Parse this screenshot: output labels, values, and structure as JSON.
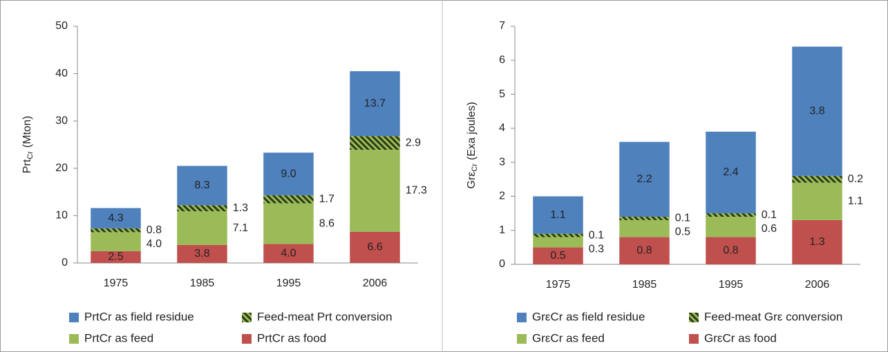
{
  "chart_data": [
    {
      "type": "stacked_bar",
      "y_label": {
        "main": "Prt",
        "sub": "Cr",
        "rest": "(Mton)"
      },
      "categories": [
        "1975",
        "1985",
        "1995",
        "2006"
      ],
      "ylim": [
        0,
        50
      ],
      "yticks": [
        0,
        10,
        20,
        30,
        40,
        50
      ],
      "series": [
        {
          "name": "PrtCr as food",
          "color": "#c0504d",
          "values": [
            2.5,
            3.8,
            4.0,
            6.6
          ],
          "value_labels": [
            "2.5",
            "3.8",
            "4.0",
            "6.6"
          ],
          "label_position": "inside"
        },
        {
          "name": "PrtCr as feed",
          "color": "#9bbb59",
          "values": [
            4.0,
            7.1,
            8.6,
            17.3
          ],
          "value_labels": [
            "4.0",
            "7.1",
            "8.6",
            "17.3"
          ],
          "label_position": "right"
        },
        {
          "name": "Feed-meat Prt conversion",
          "color": "#9bbb59",
          "hatch": "#2a3a12",
          "values": [
            0.8,
            1.3,
            1.7,
            2.9
          ],
          "value_labels": [
            "0.8",
            "1.3",
            "1.7",
            "2.9"
          ],
          "label_position": "right"
        },
        {
          "name": "PrtCr as field residue",
          "color": "#4f81bd",
          "values": [
            4.3,
            8.3,
            9.0,
            13.7
          ],
          "value_labels": [
            "4.3",
            "8.3",
            "9.0",
            "13.7"
          ],
          "label_position": "inside"
        }
      ]
    },
    {
      "type": "stacked_bar",
      "y_label": {
        "main": "Grε",
        "sub": "Cr",
        "rest": "(Exa joules)"
      },
      "categories": [
        "1975",
        "1985",
        "1995",
        "2006"
      ],
      "ylim": [
        0,
        7
      ],
      "yticks": [
        0,
        1,
        2,
        3,
        4,
        5,
        6,
        7
      ],
      "series": [
        {
          "name": "GrεCr as food",
          "color": "#c0504d",
          "values": [
            0.5,
            0.8,
            0.8,
            1.3
          ],
          "value_labels": [
            "0.5",
            "0.8",
            "0.8",
            "1.3"
          ],
          "label_position": "inside"
        },
        {
          "name": "GrεCr as feed",
          "color": "#9bbb59",
          "values": [
            0.3,
            0.5,
            0.6,
            1.1
          ],
          "value_labels": [
            "0.3",
            "0.5",
            "0.6",
            "1.1"
          ],
          "label_position": "right"
        },
        {
          "name": "Feed-meat Grε conversion",
          "color": "#9bbb59",
          "hatch": "#2a3a12",
          "values": [
            0.1,
            0.1,
            0.1,
            0.2
          ],
          "value_labels": [
            "0.1",
            "0.1",
            "0.1",
            "0.2"
          ],
          "label_position": "right"
        },
        {
          "name": "GrεCr as field residue",
          "color": "#4f81bd",
          "values": [
            1.1,
            2.2,
            2.4,
            3.8
          ],
          "value_labels": [
            "1.1",
            "2.2",
            "2.4",
            "3.8"
          ],
          "label_position": "inside"
        }
      ]
    }
  ]
}
